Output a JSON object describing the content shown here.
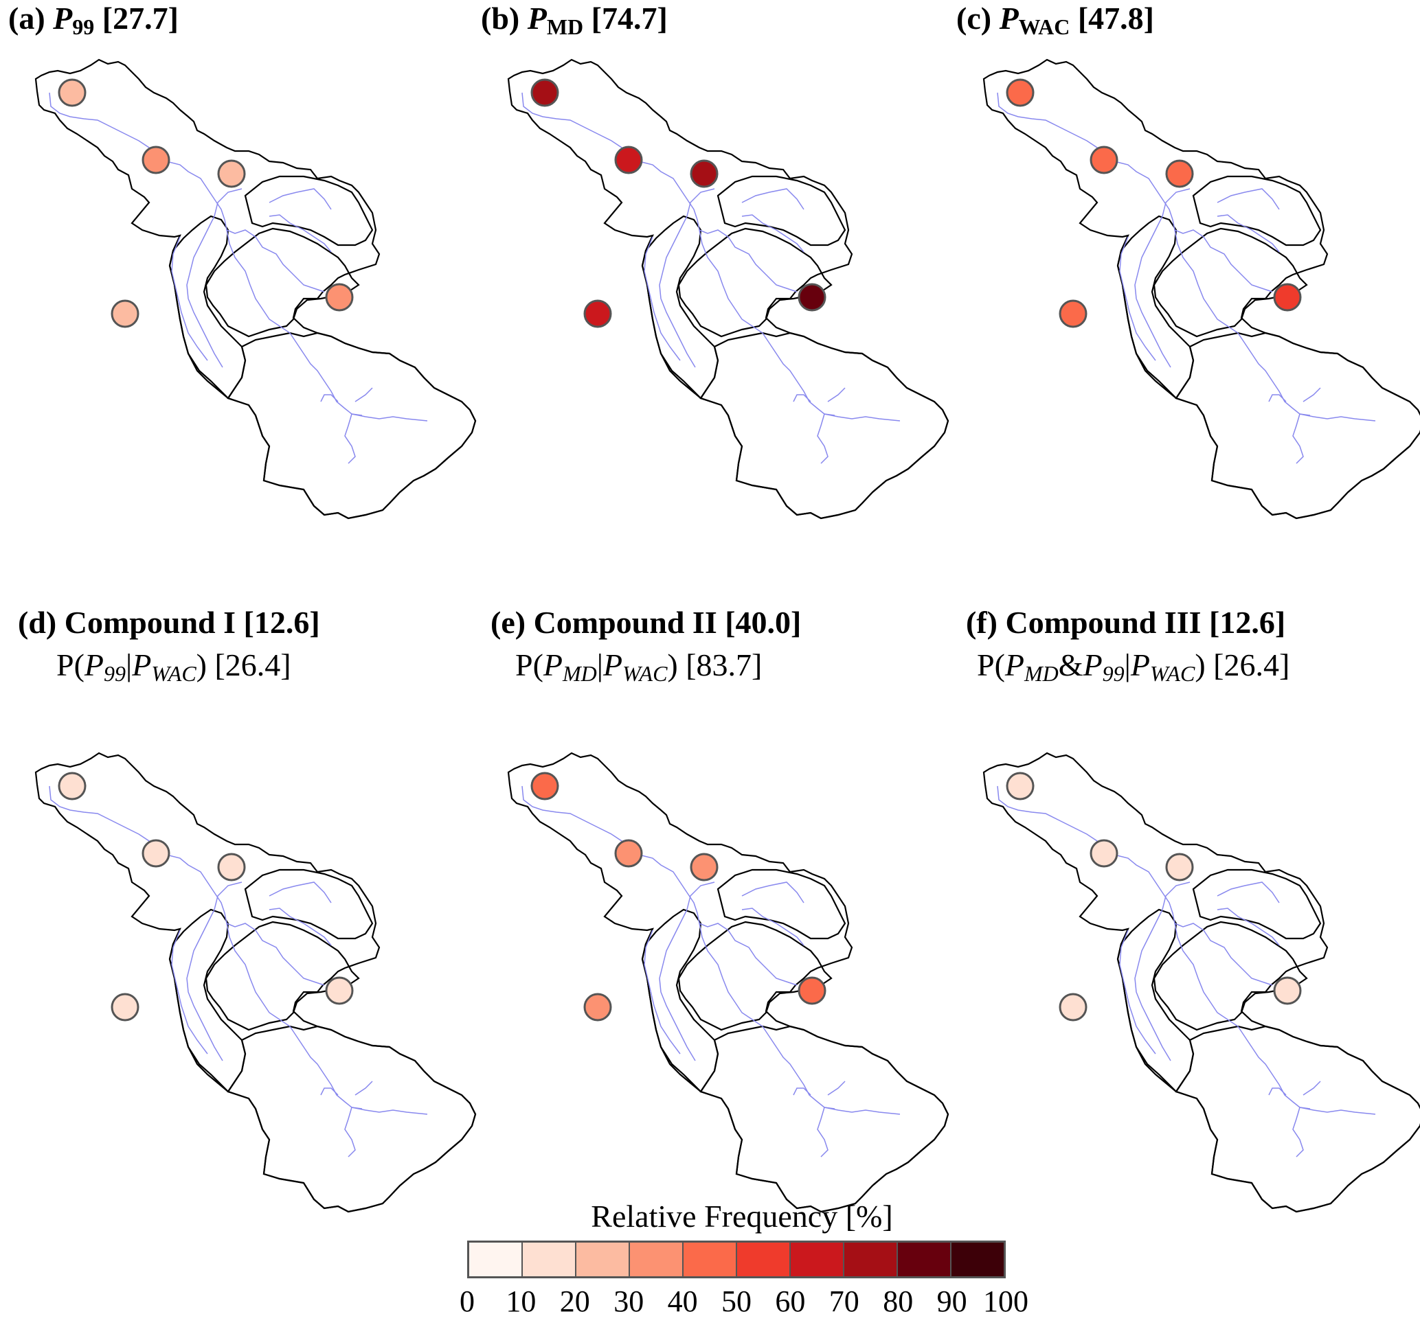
{
  "panels": [
    {
      "id": "a",
      "title_prefix": "(a) ",
      "var": "P",
      "var_sub": "99",
      "title_suffix": " [27.7]",
      "subtitle": null,
      "stations": [
        25,
        35,
        25,
        25,
        35
      ]
    },
    {
      "id": "b",
      "title_prefix": "(b) ",
      "var": "P",
      "var_sub": "MD",
      "title_suffix": " [74.7]",
      "subtitle": null,
      "stations": [
        75,
        65,
        75,
        65,
        85
      ]
    },
    {
      "id": "c",
      "title_prefix": "(c) ",
      "var": "P",
      "var_sub": "WAC",
      "title_suffix": " [47.8]",
      "subtitle": null,
      "stations": [
        45,
        45,
        45,
        45,
        55
      ]
    },
    {
      "id": "d",
      "title_prefix": "(d) ",
      "var": "",
      "var_sub": "",
      "title_suffix": "Compound I [12.6]",
      "subtitle": {
        "pre": "P(",
        "a": "P",
        "a_sub": "99",
        "mid": "|",
        "b": "P",
        "b_sub": "WAC",
        "post": ") [26.4]"
      },
      "stations": [
        15,
        15,
        15,
        15,
        15
      ]
    },
    {
      "id": "e",
      "title_prefix": "(e) ",
      "var": "",
      "var_sub": "",
      "title_suffix": "Compound II [40.0]",
      "subtitle": {
        "pre": "P(",
        "a": "P",
        "a_sub": "MD",
        "mid": "|",
        "b": "P",
        "b_sub": "WAC",
        "post": ") [83.7]"
      },
      "stations": [
        45,
        35,
        35,
        35,
        45
      ]
    },
    {
      "id": "f",
      "title_prefix": "(f) ",
      "var": "",
      "var_sub": "",
      "title_suffix": "Compound III [12.6]",
      "subtitle": {
        "pre": "P(",
        "a": "P",
        "a_sub": "MD",
        "mid": "&",
        "c": "P",
        "c_sub": "99",
        "mid2": "|",
        "b": "P",
        "b_sub": "WAC",
        "post": ") [26.4]"
      },
      "stations": [
        15,
        15,
        15,
        15,
        15
      ]
    }
  ],
  "legend": {
    "title": "Relative Frequency [%]",
    "ticks": [
      "0",
      "10",
      "20",
      "30",
      "40",
      "50",
      "60",
      "70",
      "80",
      "90",
      "100"
    ],
    "colors": [
      "#fff5f0",
      "#fee0d2",
      "#fcbba1",
      "#fc9272",
      "#fb6a4a",
      "#ef3b2c",
      "#cb181d",
      "#a50f15",
      "#67000d",
      "#3d0008"
    ]
  },
  "colors": {
    "boundary": "#000000",
    "river": "#8888ee",
    "station_stroke": "#555555"
  }
}
